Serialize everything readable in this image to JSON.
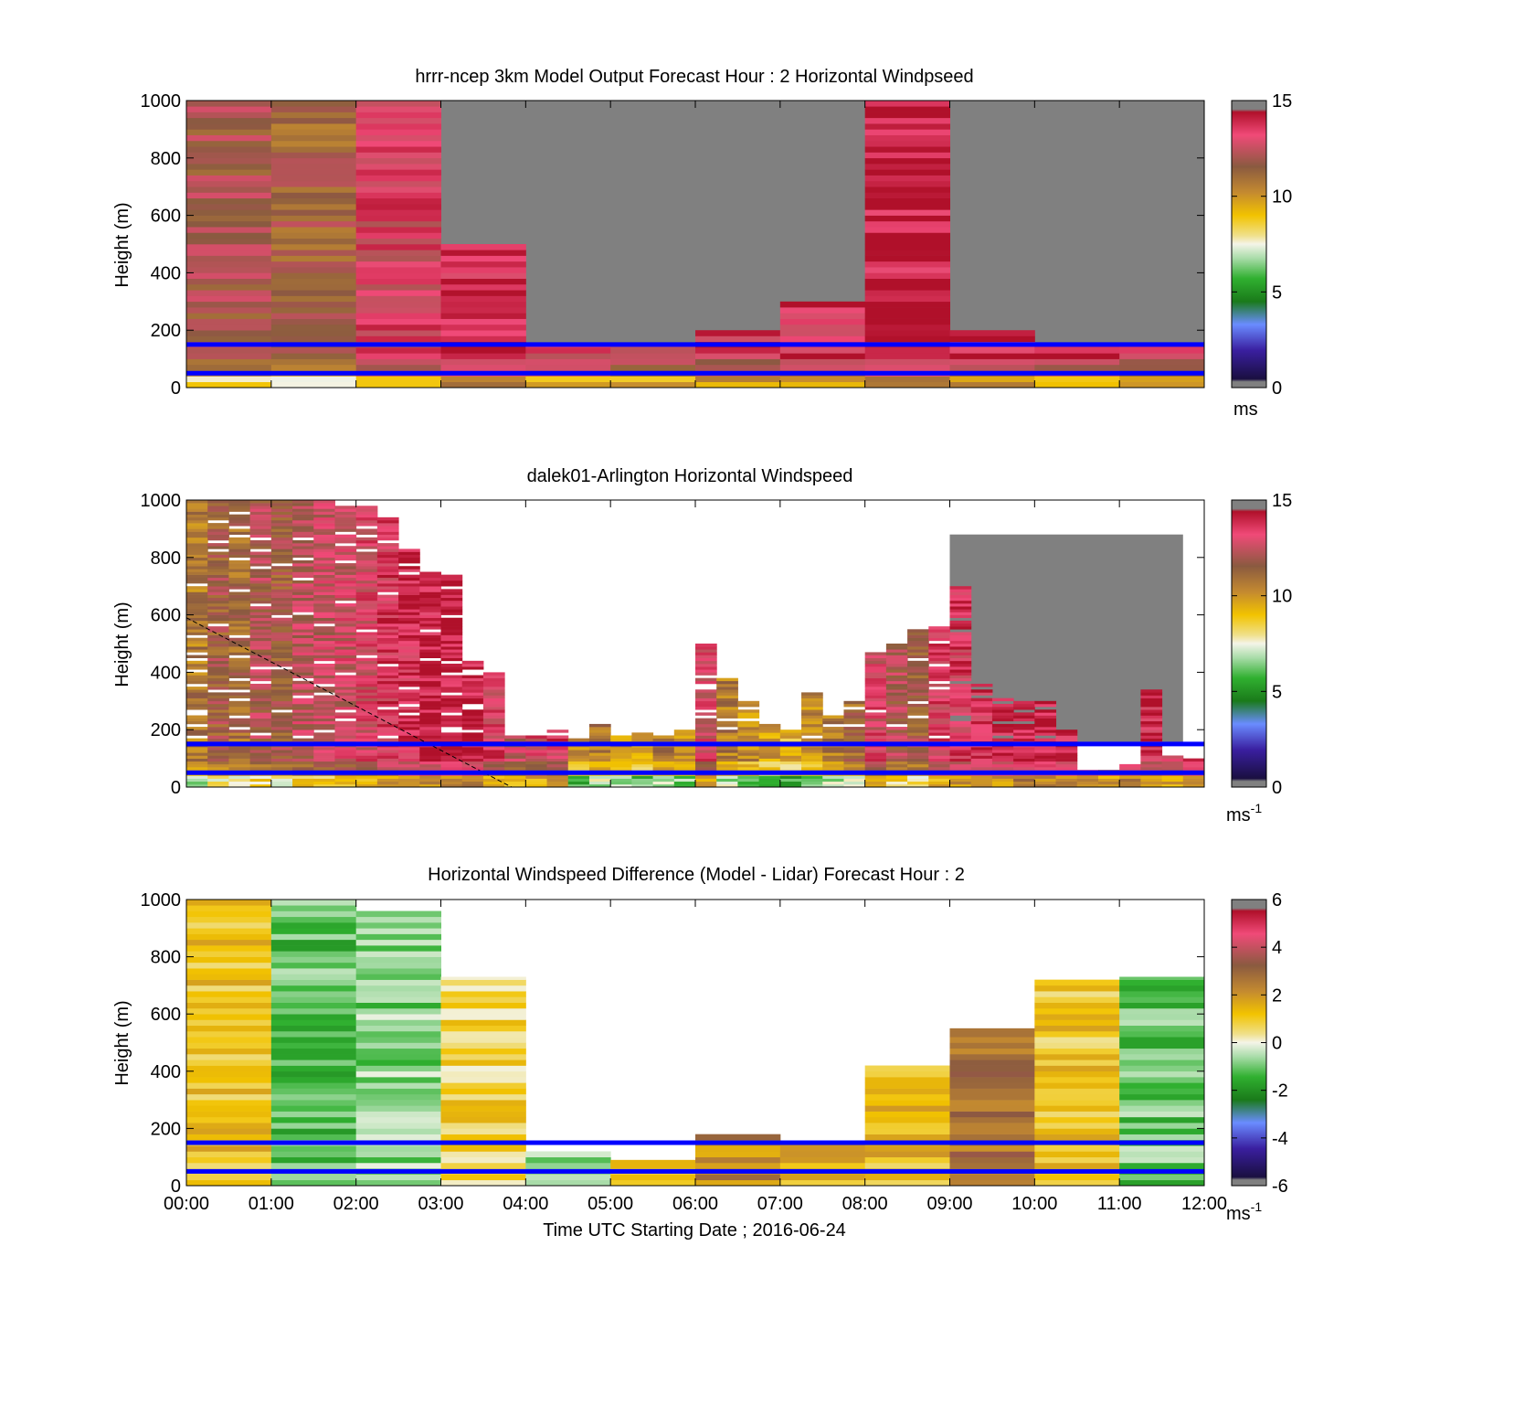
{
  "figure": {
    "xaxis_label": "Time UTC  Starting Date ; 2016-06-24",
    "xticks": [
      "00:00",
      "01:00",
      "02:00",
      "03:00",
      "04:00",
      "05:00",
      "06:00",
      "07:00",
      "08:00",
      "09:00",
      "10:00",
      "11:00",
      "12:00"
    ]
  },
  "chart_data": [
    {
      "type": "heatmap",
      "title": "hrrr-ncep 3km Model Output   Forecast Hour : 2 Horizontal Windpseed",
      "ylabel": "Height (m)",
      "ylim": [
        0,
        1000
      ],
      "yticks": [
        "0",
        "200",
        "400",
        "600",
        "800",
        "1000"
      ],
      "xlim": [
        "00:00",
        "12:00"
      ],
      "colorbar": {
        "min": 0,
        "max": 15,
        "ticks": [
          "0",
          "5",
          "10",
          "15"
        ],
        "unit": "ms"
      },
      "reference_lines_m": [
        150,
        50
      ],
      "columns": [
        {
          "start": "00:00",
          "top_m": 1000,
          "speed_ms": 12.3
        },
        {
          "start": "01:00",
          "top_m": 1000,
          "speed_ms": 11.8
        },
        {
          "start": "02:00",
          "top_m": 1000,
          "speed_ms": 13.6
        },
        {
          "start": "03:00",
          "top_m": 500,
          "speed_ms": 14.4
        },
        {
          "start": "04:00",
          "top_m": 150,
          "speed_ms": 13.8
        },
        {
          "start": "05:00",
          "top_m": 150,
          "speed_ms": 13.6
        },
        {
          "start": "06:00",
          "top_m": 200,
          "speed_ms": 13.9
        },
        {
          "start": "07:00",
          "top_m": 300,
          "speed_ms": 14.2
        },
        {
          "start": "08:00",
          "top_m": 1000,
          "speed_ms": 14.5
        },
        {
          "start": "09:00",
          "top_m": 200,
          "speed_ms": 14.2
        },
        {
          "start": "10:00",
          "top_m": 150,
          "speed_ms": 14.0
        },
        {
          "start": "11:00",
          "top_m": 150,
          "speed_ms": 13.8
        }
      ],
      "above_columns": "missing (grey)"
    },
    {
      "type": "heatmap",
      "title": "dalek01-Arlington  Horizontal Windspeed",
      "ylabel": "Height (m)",
      "ylim": [
        0,
        1000
      ],
      "yticks": [
        "0",
        "200",
        "400",
        "600",
        "800",
        "1000"
      ],
      "xlim": [
        "00:00",
        "12:00"
      ],
      "colorbar": {
        "min": 0,
        "max": 15,
        "ticks": [
          "0",
          "5",
          "10",
          "15"
        ],
        "unit": "ms",
        "unit_sup": "-1"
      },
      "reference_lines_m": [
        150,
        50
      ],
      "profiles": [
        {
          "start": "00:00",
          "top_m": 1000,
          "speed_ms": 11
        },
        {
          "start": "00:15",
          "top_m": 1000,
          "speed_ms": 12
        },
        {
          "start": "00:30",
          "top_m": 1000,
          "speed_ms": 11.5
        },
        {
          "start": "00:45",
          "top_m": 1000,
          "speed_ms": 12.5
        },
        {
          "start": "01:00",
          "top_m": 1000,
          "speed_ms": 12
        },
        {
          "start": "01:15",
          "top_m": 1000,
          "speed_ms": 12.8
        },
        {
          "start": "01:30",
          "top_m": 1000,
          "speed_ms": 13
        },
        {
          "start": "01:45",
          "top_m": 990,
          "speed_ms": 13.2
        },
        {
          "start": "02:00",
          "top_m": 980,
          "speed_ms": 13.5
        },
        {
          "start": "02:15",
          "top_m": 940,
          "speed_ms": 14
        },
        {
          "start": "02:30",
          "top_m": 830,
          "speed_ms": 14.3
        },
        {
          "start": "02:45",
          "top_m": 750,
          "speed_ms": 14.6
        },
        {
          "start": "03:00",
          "top_m": 740,
          "speed_ms": 14.8
        },
        {
          "start": "03:15",
          "top_m": 440,
          "speed_ms": 14.6
        },
        {
          "start": "03:30",
          "top_m": 400,
          "speed_ms": 13.8
        },
        {
          "start": "03:45",
          "top_m": 180,
          "speed_ms": 13
        },
        {
          "start": "04:00",
          "top_m": 180,
          "speed_ms": 13.5
        },
        {
          "start": "04:15",
          "top_m": 200,
          "speed_ms": 13.8
        },
        {
          "start": "04:30",
          "top_m": 170,
          "speed_ms": 10
        },
        {
          "start": "04:45",
          "top_m": 220,
          "speed_ms": 11
        },
        {
          "start": "05:00",
          "top_m": 180,
          "speed_ms": 10.5
        },
        {
          "start": "05:15",
          "top_m": 200,
          "speed_ms": 10
        },
        {
          "start": "05:30",
          "top_m": 180,
          "speed_ms": 11
        },
        {
          "start": "05:45",
          "top_m": 200,
          "speed_ms": 10.5
        },
        {
          "start": "06:00",
          "top_m": 500,
          "speed_ms": 13.5
        },
        {
          "start": "06:15",
          "top_m": 380,
          "speed_ms": 11
        },
        {
          "start": "06:30",
          "top_m": 300,
          "speed_ms": 10.5
        },
        {
          "start": "06:45",
          "top_m": 220,
          "speed_ms": 10
        },
        {
          "start": "07:00",
          "top_m": 200,
          "speed_ms": 9.5
        },
        {
          "start": "07:15",
          "top_m": 330,
          "speed_ms": 10.5
        },
        {
          "start": "07:30",
          "top_m": 250,
          "speed_ms": 11
        },
        {
          "start": "07:45",
          "top_m": 300,
          "speed_ms": 11.5
        },
        {
          "start": "08:00",
          "top_m": 480,
          "speed_ms": 13.5
        },
        {
          "start": "08:15",
          "top_m": 500,
          "speed_ms": 12.5
        },
        {
          "start": "08:30",
          "top_m": 550,
          "speed_ms": 12
        },
        {
          "start": "08:45",
          "top_m": 560,
          "speed_ms": 13.8
        },
        {
          "start": "09:00",
          "top_m": 700,
          "speed_ms": 14
        },
        {
          "start": "09:15",
          "top_m": 370,
          "speed_ms": 14.2
        },
        {
          "start": "09:30",
          "top_m": 310,
          "speed_ms": 14.5
        },
        {
          "start": "09:45",
          "top_m": 300,
          "speed_ms": 14.8
        },
        {
          "start": "10:00",
          "top_m": 300,
          "speed_ms": 14.8
        },
        {
          "start": "10:15",
          "top_m": 200,
          "speed_ms": 14.5
        },
        {
          "start": "10:30",
          "top_m": 60,
          "speed_ms": 14.2
        },
        {
          "start": "10:45",
          "top_m": 60,
          "speed_ms": 14
        },
        {
          "start": "11:00",
          "top_m": 80,
          "speed_ms": 14.5
        },
        {
          "start": "11:15",
          "top_m": 340,
          "speed_ms": 14.3
        },
        {
          "start": "11:30",
          "top_m": 110,
          "speed_ms": 14
        },
        {
          "start": "11:45",
          "top_m": 100,
          "speed_ms": 14.5
        }
      ],
      "missing_regions": [
        {
          "start": "09:00",
          "end": "11:45",
          "bottom_m": 150,
          "top_m": 880
        }
      ],
      "dashed_line": {
        "from": {
          "time": "00:00",
          "height_m": 590
        },
        "to": {
          "time": "03:50",
          "height_m": 0
        }
      }
    },
    {
      "type": "heatmap",
      "title": "Horizontal Windspeed Difference (Model - Lidar) Forecast Hour : 2",
      "ylabel": "Height (m)",
      "ylim": [
        0,
        1000
      ],
      "yticks": [
        "0",
        "200",
        "400",
        "600",
        "800",
        "1000"
      ],
      "xlim": [
        "00:00",
        "12:00"
      ],
      "colorbar": {
        "min": -6,
        "max": 6,
        "ticks": [
          "-6",
          "-4",
          "-2",
          "0",
          "2",
          "4",
          "6"
        ],
        "unit": "ms",
        "unit_sup": "-1"
      },
      "reference_lines_m": [
        150,
        50
      ],
      "columns": [
        {
          "start": "00:00",
          "top_m": 1000,
          "diff_ms": 1.3
        },
        {
          "start": "01:00",
          "top_m": 1000,
          "diff_ms": -1.2
        },
        {
          "start": "02:00",
          "top_m": 960,
          "diff_ms": -0.8
        },
        {
          "start": "03:00",
          "top_m": 730,
          "diff_ms": 0.9
        },
        {
          "start": "04:00",
          "top_m": 120,
          "diff_ms": -1.0
        },
        {
          "start": "05:00",
          "top_m": 90,
          "diff_ms": 1.5
        },
        {
          "start": "06:00",
          "top_m": 180,
          "diff_ms": 2.5
        },
        {
          "start": "07:00",
          "top_m": 150,
          "diff_ms": 1.5
        },
        {
          "start": "08:00",
          "top_m": 420,
          "diff_ms": 1.4
        },
        {
          "start": "09:00",
          "top_m": 550,
          "diff_ms": 3.0
        },
        {
          "start": "10:00",
          "top_m": 720,
          "diff_ms": 1.2
        },
        {
          "start": "11:00",
          "top_m": 730,
          "diff_ms": -1.0
        }
      ]
    }
  ]
}
